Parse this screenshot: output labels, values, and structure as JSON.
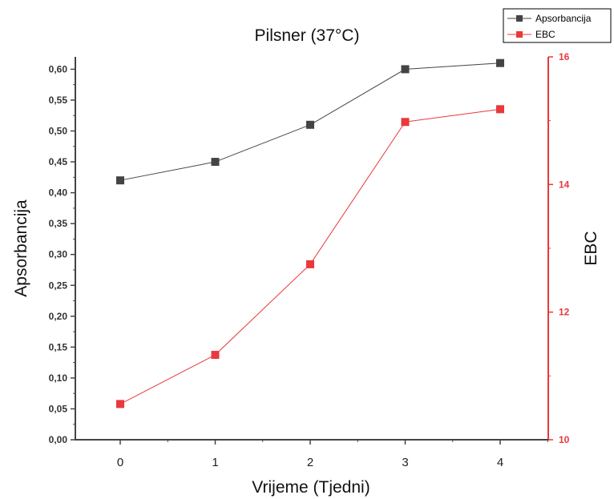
{
  "chart_data": {
    "type": "line",
    "title": "Pilsner (37°C)",
    "xlabel": "Vrijeme (Tjedni)",
    "ylabel_left": "Apsorbancija",
    "ylabel_right": "EBC",
    "x": [
      0,
      1,
      2,
      3,
      4
    ],
    "xlim": [
      -0.5,
      4.5
    ],
    "x_ticks": [
      "0",
      "1",
      "2",
      "3",
      "4"
    ],
    "ylim_left": [
      0,
      0.62
    ],
    "ylim_right": [
      10,
      16
    ],
    "left_ticks": [
      "0,00",
      "0,05",
      "0,10",
      "0,15",
      "0,20",
      "0,25",
      "0,30",
      "0,35",
      "0,40",
      "0,45",
      "0,50",
      "0,55",
      "0,60"
    ],
    "right_ticks": [
      "10",
      "12",
      "14",
      "16"
    ],
    "grid": false,
    "legend_position": "top-right",
    "series": [
      {
        "name": "Apsorbancija",
        "axis": "left",
        "color": "#444444",
        "values": [
          0.42,
          0.45,
          0.51,
          0.6,
          0.61
        ]
      },
      {
        "name": "EBC",
        "axis": "right",
        "color": "#e8393c",
        "values": [
          10.56,
          11.33,
          12.75,
          14.98,
          15.18
        ]
      }
    ]
  }
}
